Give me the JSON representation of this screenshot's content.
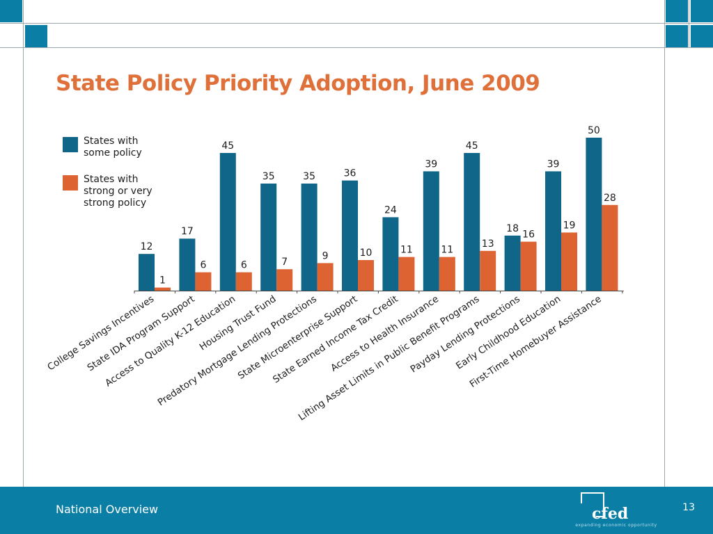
{
  "slide": {
    "title": "State Policy Priority Adoption, June 2009",
    "footer_section": "National Overview",
    "page_number": "13"
  },
  "logo": {
    "name": "cfed",
    "tagline": "expanding economic opportunity"
  },
  "colors": {
    "teal_series": "#0f6688",
    "orange_series": "#dd6332",
    "title": "#e0703a",
    "footer": "#0b7ea5",
    "corner_squares": "#0b7ea5"
  },
  "chart_data": {
    "type": "bar",
    "categories": [
      "College Savings Incentives",
      "State IDA Program Support",
      "Access to Quality K-12 Education",
      "Housing Trust Fund",
      "Predatory Mortgage Lending Protections",
      "State Microenterprise Support",
      "State Earned Income Tax Credit",
      "Access to Health Insurance",
      "Lifting Asset Limits in Public Benefit Programs",
      "Payday Lending Protections",
      "Early Childhood Education",
      "First-Time Homebuyer Assistance"
    ],
    "series": [
      {
        "name": "States with\nsome policy",
        "color": "#0f6688",
        "values": [
          12,
          17,
          45,
          35,
          35,
          36,
          24,
          39,
          45,
          18,
          39,
          50
        ]
      },
      {
        "name": "States with\nstrong or very\nstrong policy",
        "color": "#dd6332",
        "values": [
          1,
          6,
          6,
          7,
          9,
          10,
          11,
          11,
          13,
          16,
          19,
          28
        ]
      }
    ],
    "title": "",
    "xlabel": "",
    "ylabel": "",
    "ylim": [
      0,
      50
    ],
    "grid": false,
    "legend_position": "top-left",
    "data_labels": true
  }
}
